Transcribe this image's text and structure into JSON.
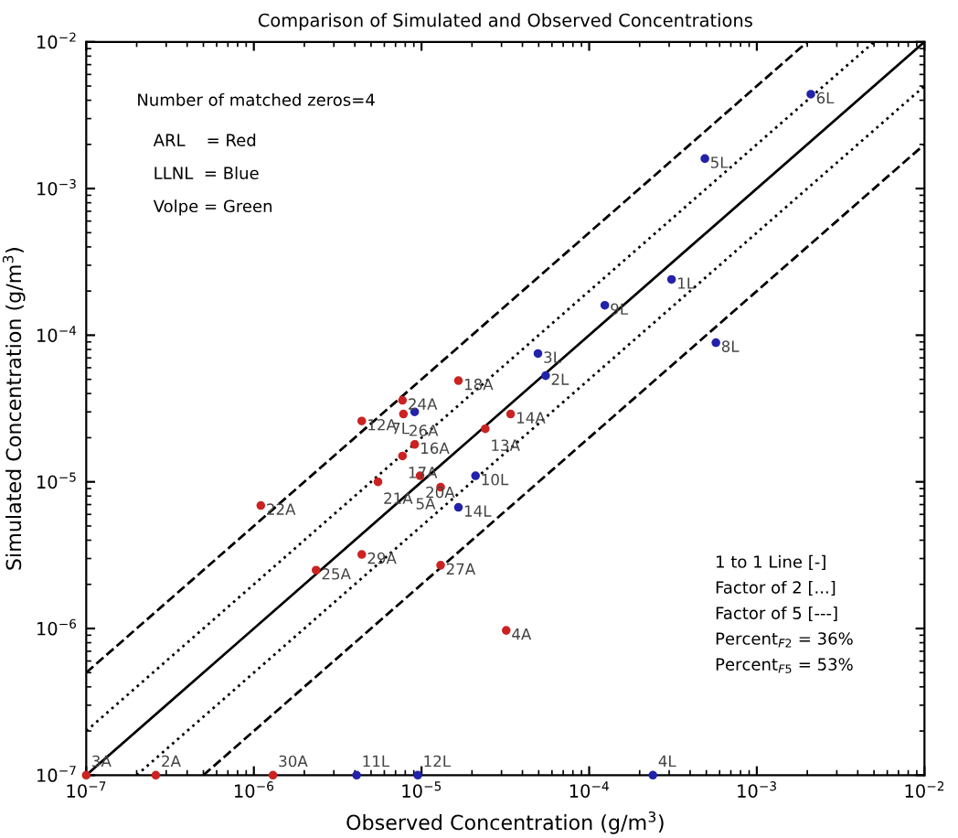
{
  "chart_data": {
    "type": "scatter",
    "title": "Comparison of Simulated and Observed Concentrations",
    "xlabel": "Observed Concentration (g/m$^{3}$)",
    "ylabel": "Simulated Concentration (g/m$^{3}$)",
    "log": "xy",
    "grid": false,
    "legend": false,
    "marker": "circle",
    "xlim": [
      1e-07,
      0.01
    ],
    "ylim": [
      1e-07,
      0.01
    ],
    "xticks": [
      {
        "value": 1e-07,
        "label": "10$^{−7}$"
      },
      {
        "value": 1e-06,
        "label": "10$^{−6}$"
      },
      {
        "value": 1e-05,
        "label": "10$^{−5}$"
      },
      {
        "value": 0.0001,
        "label": "10$^{−4}$"
      },
      {
        "value": 0.001,
        "label": "10$^{−3}$"
      },
      {
        "value": 0.01,
        "label": "10$^{−2}$"
      }
    ],
    "yticks": [
      {
        "value": 1e-07,
        "label": "10$^{−7}$"
      },
      {
        "value": 1e-06,
        "label": "10$^{−6}$"
      },
      {
        "value": 1e-05,
        "label": "10$^{−5}$"
      },
      {
        "value": 0.0001,
        "label": "10$^{−4}$"
      },
      {
        "value": 0.001,
        "label": "10$^{−3}$"
      },
      {
        "value": 0.01,
        "label": "10$^{−2}$"
      }
    ],
    "series": [
      {
        "color": "#cc2222",
        "x": [
          3.4e-05,
          3.2e-05,
          1.66e-05,
          7.7e-06,
          7.8e-06,
          4.4e-06,
          2.4e-05,
          9.1e-06,
          7.7e-06,
          5.5e-06,
          9.8e-06,
          1.3e-05,
          1.1e-06,
          4.4e-06,
          2.35e-06,
          1.3e-05,
          1e-07,
          2.6e-07,
          1.3e-06
        ],
        "values": [
          2.9e-05,
          9.7e-07,
          4.9e-05,
          3.6e-05,
          2.9e-05,
          2.6e-05,
          2.3e-05,
          1.8e-05,
          1.5e-05,
          1e-05,
          1.1e-05,
          9.2e-06,
          6.9e-06,
          3.2e-06,
          2.5e-06,
          2.7e-06,
          1e-07,
          1e-07,
          1e-07
        ]
      },
      {
        "color": "#2222aa",
        "x": [
          0.0021,
          0.00049,
          0.00031,
          0.000124,
          0.00057,
          4.95e-05,
          5.5e-05,
          9.1e-06,
          2.1e-05,
          1.66e-05,
          4.1e-06,
          9.5e-06,
          0.00024
        ],
        "values": [
          0.0044,
          0.0016,
          0.00024,
          0.00016,
          8.9e-05,
          7.5e-05,
          5.3e-05,
          3e-05,
          1.1e-05,
          6.7e-06,
          1e-07,
          1e-07,
          1e-07
        ]
      },
      {
        "type": "line",
        "color": "#000000",
        "line_style": "solid",
        "marker": "none",
        "x": [
          1e-07,
          0.01
        ],
        "values": [
          1e-07,
          0.01
        ]
      },
      {
        "type": "line",
        "color": "#000000",
        "line_style": "dotted",
        "marker": "none",
        "x": [
          1e-07,
          0.005
        ],
        "values": [
          2e-07,
          0.01
        ]
      },
      {
        "type": "line",
        "color": "#000000",
        "line_style": "dotted",
        "marker": "none",
        "x": [
          2e-07,
          0.01
        ],
        "values": [
          1e-07,
          0.005
        ]
      },
      {
        "type": "line",
        "color": "#000000",
        "line_style": "dashed",
        "marker": "none",
        "x": [
          1e-07,
          0.002
        ],
        "values": [
          5e-07,
          0.01
        ]
      },
      {
        "type": "line",
        "color": "#000000",
        "line_style": "dashed",
        "marker": "none",
        "x": [
          5e-07,
          0.01
        ],
        "values": [
          1e-07,
          0.002
        ]
      }
    ],
    "annotations": [
      "Number of matched zeros=4",
      "ARL    = Red",
      "LLNL  = Blue",
      "Volpe = Green",
      "1 to 1 Line [-]",
      "Factor of 2 [...]",
      "Factor of 5 [---]",
      "Percent$_{F2}$ = 36%",
      "Percent$_{F5}$ = 53%",
      {
        "text": "14A",
        "x": 3.4e-05,
        "y": 2.9e-05
      },
      {
        "text": "4A",
        "x": 3.2e-05,
        "y": 9.7e-07
      },
      {
        "text": "18A",
        "x": 1.66e-05,
        "y": 4.9e-05
      },
      {
        "text": "24A",
        "x": 7.7e-06,
        "y": 3.6e-05
      },
      {
        "text": "26A",
        "x": 7.8e-06,
        "y": 2.9e-05
      },
      {
        "text": "12A",
        "x": 4.4e-06,
        "y": 2.6e-05
      },
      {
        "text": "13A",
        "x": 2.4e-05,
        "y": 2.3e-05
      },
      {
        "text": "16A",
        "x": 9.1e-06,
        "y": 1.8e-05
      },
      {
        "text": "17A",
        "x": 7.7e-06,
        "y": 1.5e-05
      },
      {
        "text": "21A",
        "x": 5.5e-06,
        "y": 1e-05
      },
      {
        "text": "20A",
        "x": 9.8e-06,
        "y": 1.1e-05
      },
      {
        "text": "5A",
        "x": 1.3e-05,
        "y": 9.2e-06
      },
      {
        "text": "22A",
        "x": 1.1e-06,
        "y": 6.9e-06
      },
      {
        "text": "29A",
        "x": 4.4e-06,
        "y": 3.2e-06
      },
      {
        "text": "25A",
        "x": 2.35e-06,
        "y": 2.5e-06
      },
      {
        "text": "27A",
        "x": 1.3e-05,
        "y": 2.7e-06
      },
      {
        "text": "3A",
        "x": 1e-07,
        "y": 1e-07
      },
      {
        "text": "2A",
        "x": 2.6e-07,
        "y": 1e-07
      },
      {
        "text": "30A",
        "x": 1.3e-06,
        "y": 1e-07
      },
      {
        "text": "6L",
        "x": 0.0021,
        "y": 0.0044
      },
      {
        "text": "5L",
        "x": 0.00049,
        "y": 0.0016
      },
      {
        "text": "1L",
        "x": 0.00031,
        "y": 0.00024
      },
      {
        "text": "9L",
        "x": 0.000124,
        "y": 0.00016
      },
      {
        "text": "8L",
        "x": 0.00057,
        "y": 8.9e-05
      },
      {
        "text": "3L",
        "x": 4.95e-05,
        "y": 7.5e-05
      },
      {
        "text": "2L",
        "x": 5.5e-05,
        "y": 5.3e-05
      },
      {
        "text": "7L",
        "x": 9.1e-06,
        "y": 3e-05
      },
      {
        "text": "10L",
        "x": 2.1e-05,
        "y": 1.1e-05
      },
      {
        "text": "14L",
        "x": 1.66e-05,
        "y": 6.7e-06
      },
      {
        "text": "11L",
        "x": 4.1e-06,
        "y": 1e-07
      },
      {
        "text": "12L",
        "x": 9.5e-06,
        "y": 1e-07
      },
      {
        "text": "4L",
        "x": 0.00024,
        "y": 1e-07
      }
    ]
  }
}
